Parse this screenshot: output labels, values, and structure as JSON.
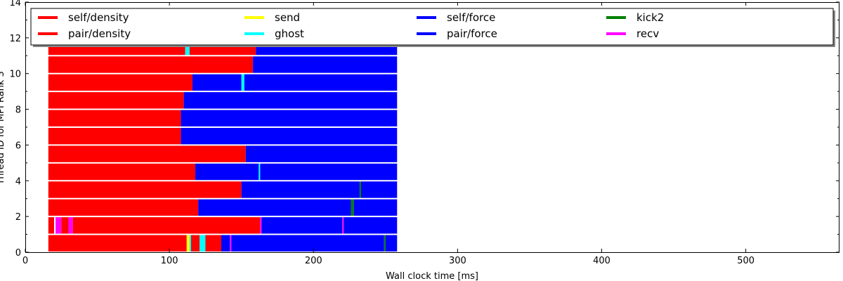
{
  "chart_data": {
    "type": "bar",
    "orientation": "horizontal-timeline",
    "xlabel": "Wall clock time [ms]",
    "ylabel": "Thread ID for MPI Rank 3",
    "xlim": [
      0,
      565
    ],
    "ylim": [
      0,
      14
    ],
    "xticks": [
      0,
      100,
      200,
      300,
      400,
      500
    ],
    "yticks": [
      0,
      2,
      4,
      6,
      8,
      10,
      12,
      14
    ],
    "grid": false,
    "legend_position": "top",
    "legend": [
      {
        "name": "self/density",
        "color": "#ff0000"
      },
      {
        "name": "pair/density",
        "color": "#ff0000"
      },
      {
        "name": "send",
        "color": "#ffff00"
      },
      {
        "name": "ghost",
        "color": "#00ffff"
      },
      {
        "name": "self/force",
        "color": "#0000ff"
      },
      {
        "name": "pair/force",
        "color": "#0000ff"
      },
      {
        "name": "kick2",
        "color": "#008000"
      },
      {
        "name": "recv",
        "color": "#ff00ff"
      }
    ],
    "threads": [
      {
        "thread": 0,
        "tasks": [
          {
            "type": "self/density",
            "start": 16,
            "end": 112
          },
          {
            "type": "send",
            "start": 112,
            "end": 114
          },
          {
            "type": "ghost",
            "start": 114,
            "end": 115
          },
          {
            "type": "pair/density",
            "start": 115,
            "end": 121
          },
          {
            "type": "ghost",
            "start": 121,
            "end": 125
          },
          {
            "type": "pair/density",
            "start": 125,
            "end": 136
          },
          {
            "type": "pair/force",
            "start": 136,
            "end": 142
          },
          {
            "type": "recv",
            "start": 142,
            "end": 143
          },
          {
            "type": "pair/force",
            "start": 143,
            "end": 249
          },
          {
            "type": "kick2",
            "start": 249,
            "end": 250
          },
          {
            "type": "pair/force",
            "start": 250,
            "end": 258
          }
        ]
      },
      {
        "thread": 1,
        "tasks": [
          {
            "type": "self/density",
            "start": 16,
            "end": 20
          },
          {
            "type": "recv",
            "start": 21,
            "end": 25
          },
          {
            "type": "pair/density",
            "start": 25,
            "end": 30
          },
          {
            "type": "recv",
            "start": 30,
            "end": 33
          },
          {
            "type": "pair/density",
            "start": 33,
            "end": 163
          },
          {
            "type": "recv",
            "start": 163,
            "end": 164
          },
          {
            "type": "pair/force",
            "start": 164,
            "end": 220
          },
          {
            "type": "recv",
            "start": 220,
            "end": 221
          },
          {
            "type": "pair/force",
            "start": 221,
            "end": 258
          }
        ]
      },
      {
        "thread": 2,
        "tasks": [
          {
            "type": "self/density",
            "start": 16,
            "end": 120
          },
          {
            "type": "pair/force",
            "start": 120,
            "end": 226
          },
          {
            "type": "kick2",
            "start": 226,
            "end": 228
          },
          {
            "type": "pair/force",
            "start": 228,
            "end": 258
          }
        ]
      },
      {
        "thread": 3,
        "tasks": [
          {
            "type": "self/density",
            "start": 16,
            "end": 150
          },
          {
            "type": "pair/force",
            "start": 150,
            "end": 232
          },
          {
            "type": "kick2",
            "start": 232,
            "end": 233
          },
          {
            "type": "pair/force",
            "start": 233,
            "end": 258
          }
        ]
      },
      {
        "thread": 4,
        "tasks": [
          {
            "type": "self/density",
            "start": 16,
            "end": 118
          },
          {
            "type": "pair/force",
            "start": 118,
            "end": 162
          },
          {
            "type": "ghost",
            "start": 162,
            "end": 163
          },
          {
            "type": "pair/force",
            "start": 163,
            "end": 258
          }
        ]
      },
      {
        "thread": 5,
        "tasks": [
          {
            "type": "self/density",
            "start": 16,
            "end": 153
          },
          {
            "type": "pair/force",
            "start": 153,
            "end": 258
          }
        ]
      },
      {
        "thread": 6,
        "tasks": [
          {
            "type": "self/density",
            "start": 16,
            "end": 108
          },
          {
            "type": "pair/force",
            "start": 108,
            "end": 258
          }
        ]
      },
      {
        "thread": 7,
        "tasks": [
          {
            "type": "self/density",
            "start": 16,
            "end": 108
          },
          {
            "type": "pair/force",
            "start": 108,
            "end": 258
          }
        ]
      },
      {
        "thread": 8,
        "tasks": [
          {
            "type": "self/density",
            "start": 16,
            "end": 110
          },
          {
            "type": "pair/force",
            "start": 110,
            "end": 258
          }
        ]
      },
      {
        "thread": 9,
        "tasks": [
          {
            "type": "self/density",
            "start": 16,
            "end": 116
          },
          {
            "type": "pair/force",
            "start": 116,
            "end": 150
          },
          {
            "type": "ghost",
            "start": 150,
            "end": 152
          },
          {
            "type": "pair/force",
            "start": 152,
            "end": 258
          }
        ]
      },
      {
        "thread": 10,
        "tasks": [
          {
            "type": "self/density",
            "start": 16,
            "end": 158
          },
          {
            "type": "pair/force",
            "start": 158,
            "end": 258
          }
        ]
      },
      {
        "thread": 11,
        "tasks": [
          {
            "type": "self/density",
            "start": 16,
            "end": 111
          },
          {
            "type": "ghost",
            "start": 111,
            "end": 114
          },
          {
            "type": "pair/density",
            "start": 114,
            "end": 160
          },
          {
            "type": "pair/force",
            "start": 160,
            "end": 258
          }
        ]
      }
    ]
  }
}
